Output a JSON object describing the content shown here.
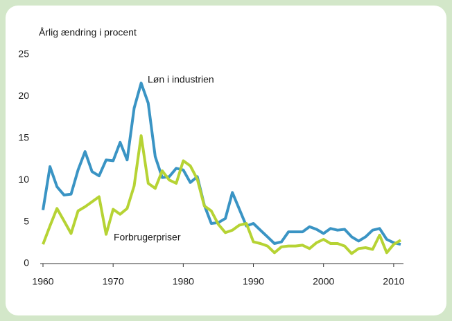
{
  "chart_data": {
    "type": "line",
    "title": "Årlig ændring i procent",
    "x": [
      1960,
      1961,
      1962,
      1963,
      1964,
      1965,
      1966,
      1967,
      1968,
      1969,
      1970,
      1971,
      1972,
      1973,
      1974,
      1975,
      1976,
      1977,
      1978,
      1979,
      1980,
      1981,
      1982,
      1983,
      1984,
      1985,
      1986,
      1987,
      1988,
      1989,
      1990,
      1991,
      1992,
      1993,
      1994,
      1995,
      1996,
      1997,
      1998,
      1999,
      2000,
      2001,
      2002,
      2003,
      2004,
      2005,
      2006,
      2007,
      2008,
      2009,
      2010,
      2011
    ],
    "series": [
      {
        "name": "Løn i industrien",
        "color": "#3a94c4",
        "values": [
          6.4,
          11.6,
          9.2,
          8.2,
          8.3,
          11.2,
          13.4,
          11.0,
          10.5,
          12.4,
          12.3,
          14.5,
          12.4,
          18.6,
          21.6,
          19.2,
          12.8,
          10.3,
          10.4,
          11.4,
          11.2,
          9.7,
          10.4,
          7.0,
          4.8,
          4.9,
          5.4,
          8.5,
          6.5,
          4.5,
          4.8,
          4.0,
          3.2,
          2.4,
          2.6,
          3.8,
          3.8,
          3.8,
          4.4,
          4.1,
          3.6,
          4.2,
          4.0,
          4.1,
          3.2,
          2.7,
          3.2,
          4.0,
          4.2,
          2.9,
          2.5,
          2.3
        ]
      },
      {
        "name": "Forbrugerpriser",
        "color": "#b6d334",
        "values": [
          2.3,
          4.5,
          6.6,
          5.1,
          3.6,
          6.3,
          6.8,
          7.4,
          8.0,
          3.5,
          6.5,
          5.9,
          6.6,
          9.3,
          15.3,
          9.6,
          9.0,
          11.1,
          10.0,
          9.6,
          12.3,
          11.7,
          10.1,
          6.9,
          6.3,
          4.7,
          3.7,
          4.0,
          4.6,
          4.8,
          2.6,
          2.4,
          2.1,
          1.3,
          2.0,
          2.1,
          2.1,
          2.2,
          1.8,
          2.5,
          2.9,
          2.4,
          2.4,
          2.1,
          1.2,
          1.8,
          1.9,
          1.7,
          3.4,
          1.3,
          2.3,
          2.8
        ]
      }
    ],
    "xlim": [
      1960,
      2011
    ],
    "xticks": [
      1960,
      1970,
      1980,
      1990,
      2000,
      2010
    ],
    "ylim": [
      0,
      25
    ],
    "yticks": [
      0,
      5,
      10,
      15,
      20,
      25
    ],
    "grid": false
  }
}
